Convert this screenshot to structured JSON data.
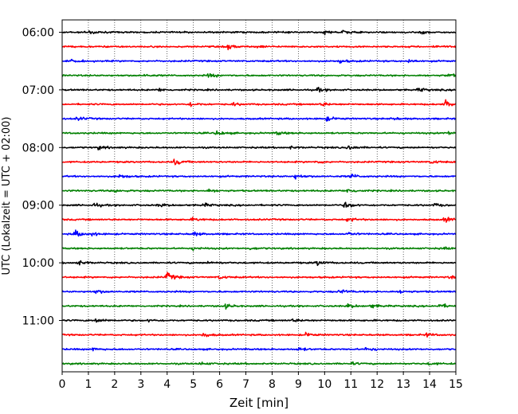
{
  "chart_data": {
    "type": "line",
    "subtype": "helicorder",
    "xlabel": "Zeit  [min]",
    "ylabel": "UTC (Lokalzeit = UTC + 02:00)",
    "xlim": [
      0,
      15
    ],
    "x_ticks": [
      "0",
      "1",
      "2",
      "3",
      "4",
      "5",
      "6",
      "7",
      "8",
      "9",
      "10",
      "11",
      "12",
      "13",
      "14",
      "15"
    ],
    "y_ticks": [
      "06:00",
      "07:00",
      "08:00",
      "09:00",
      "10:00",
      "11:00"
    ],
    "trace_minutes": 15,
    "trace_colors": [
      "#000000",
      "#ff0000",
      "#0000ff",
      "#008000"
    ],
    "vertical_grid": "dotted",
    "bursts": [
      [
        [
          1.0,
          0.9
        ],
        [
          10.0,
          0.6
        ],
        [
          10.7,
          0.6
        ],
        [
          13.7,
          0.5
        ]
      ],
      [
        [
          6.3,
          1.0
        ],
        [
          7.5,
          0.4
        ],
        [
          14.2,
          0.4
        ]
      ],
      [
        [
          0.4,
          0.6
        ],
        [
          10.6,
          0.6
        ],
        [
          13.2,
          0.6
        ]
      ],
      [
        [
          5.6,
          0.7
        ],
        [
          14.7,
          0.7
        ],
        [
          3.1,
          0.4
        ]
      ],
      [
        [
          9.7,
          0.8
        ],
        [
          13.6,
          0.7
        ],
        [
          3.7,
          0.5
        ]
      ],
      [
        [
          4.9,
          0.7
        ],
        [
          6.5,
          0.5
        ],
        [
          9.9,
          0.6
        ],
        [
          14.6,
          1.4
        ]
      ],
      [
        [
          0.6,
          0.6
        ],
        [
          10.1,
          0.7
        ],
        [
          12.6,
          0.4
        ]
      ],
      [
        [
          5.9,
          0.9
        ],
        [
          8.2,
          0.6
        ],
        [
          14.7,
          0.6
        ]
      ],
      [
        [
          1.4,
          0.6
        ],
        [
          10.9,
          0.9
        ],
        [
          8.7,
          0.4
        ]
      ],
      [
        [
          4.3,
          1.1
        ],
        [
          14.1,
          0.6
        ],
        [
          9.7,
          0.4
        ]
      ],
      [
        [
          2.2,
          0.7
        ],
        [
          8.9,
          0.9
        ],
        [
          11.0,
          0.8
        ]
      ],
      [
        [
          5.6,
          0.5
        ],
        [
          10.9,
          0.9
        ],
        [
          2.0,
          0.5
        ]
      ],
      [
        [
          1.2,
          0.7
        ],
        [
          3.7,
          0.6
        ],
        [
          5.4,
          0.6
        ],
        [
          10.8,
          1.2
        ],
        [
          14.2,
          0.5
        ]
      ],
      [
        [
          5.0,
          0.6
        ],
        [
          10.9,
          0.7
        ],
        [
          14.6,
          0.9
        ]
      ],
      [
        [
          0.5,
          1.2
        ],
        [
          1.1,
          0.6
        ],
        [
          5.0,
          0.7
        ],
        [
          10.9,
          0.6
        ]
      ],
      [
        [
          5.0,
          0.5
        ],
        [
          7.2,
          0.4
        ],
        [
          14.5,
          0.4
        ]
      ],
      [
        [
          0.6,
          0.9
        ],
        [
          9.7,
          0.9
        ],
        [
          5.6,
          0.4
        ]
      ],
      [
        [
          4.0,
          1.6
        ],
        [
          6.0,
          0.6
        ],
        [
          14.8,
          0.6
        ]
      ],
      [
        [
          1.3,
          0.7
        ],
        [
          10.6,
          0.8
        ],
        [
          12.9,
          0.5
        ]
      ],
      [
        [
          6.2,
          0.8
        ],
        [
          10.9,
          0.7
        ],
        [
          11.8,
          0.6
        ],
        [
          14.4,
          0.8
        ]
      ],
      [
        [
          1.3,
          0.8
        ],
        [
          3.3,
          0.4
        ],
        [
          8.8,
          0.5
        ]
      ],
      [
        [
          5.4,
          0.8
        ],
        [
          9.3,
          0.6
        ],
        [
          13.9,
          0.6
        ]
      ],
      [
        [
          1.2,
          0.5
        ],
        [
          9.0,
          0.6
        ],
        [
          11.6,
          0.7
        ]
      ],
      [
        [
          5.3,
          0.5
        ],
        [
          11.0,
          0.4
        ],
        [
          14.0,
          0.4
        ]
      ]
    ]
  }
}
